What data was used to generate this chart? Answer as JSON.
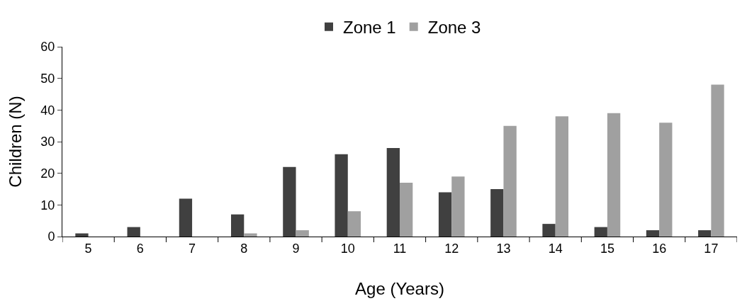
{
  "chart_data": {
    "type": "bar",
    "xlabel": "Age (Years)",
    "ylabel": "Children (N)",
    "categories": [
      "5",
      "6",
      "7",
      "8",
      "9",
      "10",
      "11",
      "12",
      "13",
      "14",
      "15",
      "16",
      "17"
    ],
    "series": [
      {
        "name": "Zone 1",
        "color": "#404040",
        "values": [
          1,
          3,
          12,
          7,
          22,
          26,
          28,
          14,
          15,
          4,
          3,
          2,
          2
        ]
      },
      {
        "name": "Zone 3",
        "color": "#a0a0a0",
        "values": [
          0,
          0,
          0,
          1,
          2,
          8,
          17,
          19,
          35,
          38,
          39,
          36,
          48
        ]
      }
    ],
    "ylim": [
      0,
      60
    ],
    "yticks": [
      0,
      10,
      20,
      30,
      40,
      50,
      60
    ],
    "grid": false,
    "legend": "top"
  }
}
